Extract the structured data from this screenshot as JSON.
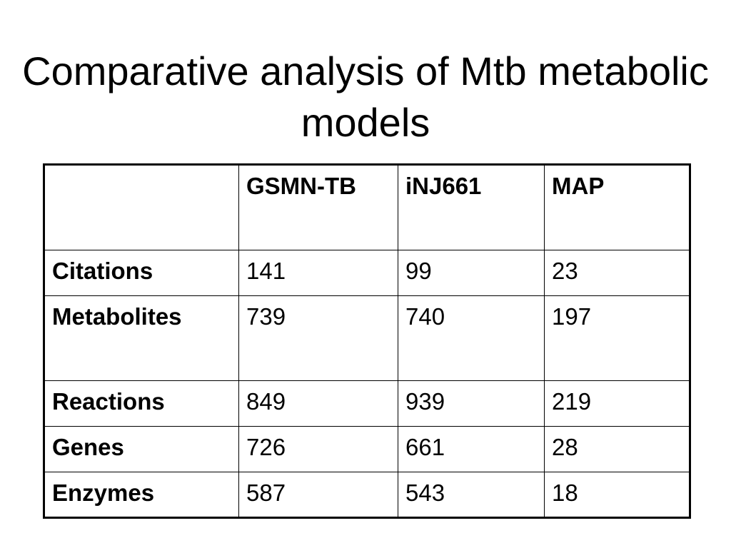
{
  "slide": {
    "title": "Comparative analysis of Mtb metabolic models"
  },
  "table": {
    "corner": "",
    "columns": [
      "GSMN-TB",
      "iNJ661",
      "MAP"
    ],
    "rows": [
      {
        "label": "Citations",
        "values": [
          "141",
          "99",
          "23"
        ]
      },
      {
        "label": "Metabolites",
        "values": [
          "739",
          "740",
          "197"
        ]
      },
      {
        "label": "Reactions",
        "values": [
          "849",
          "939",
          "219"
        ]
      },
      {
        "label": "Genes",
        "values": [
          "726",
          "661",
          "28"
        ]
      },
      {
        "label": "Enzymes",
        "values": [
          "587",
          "543",
          "18"
        ]
      }
    ]
  }
}
